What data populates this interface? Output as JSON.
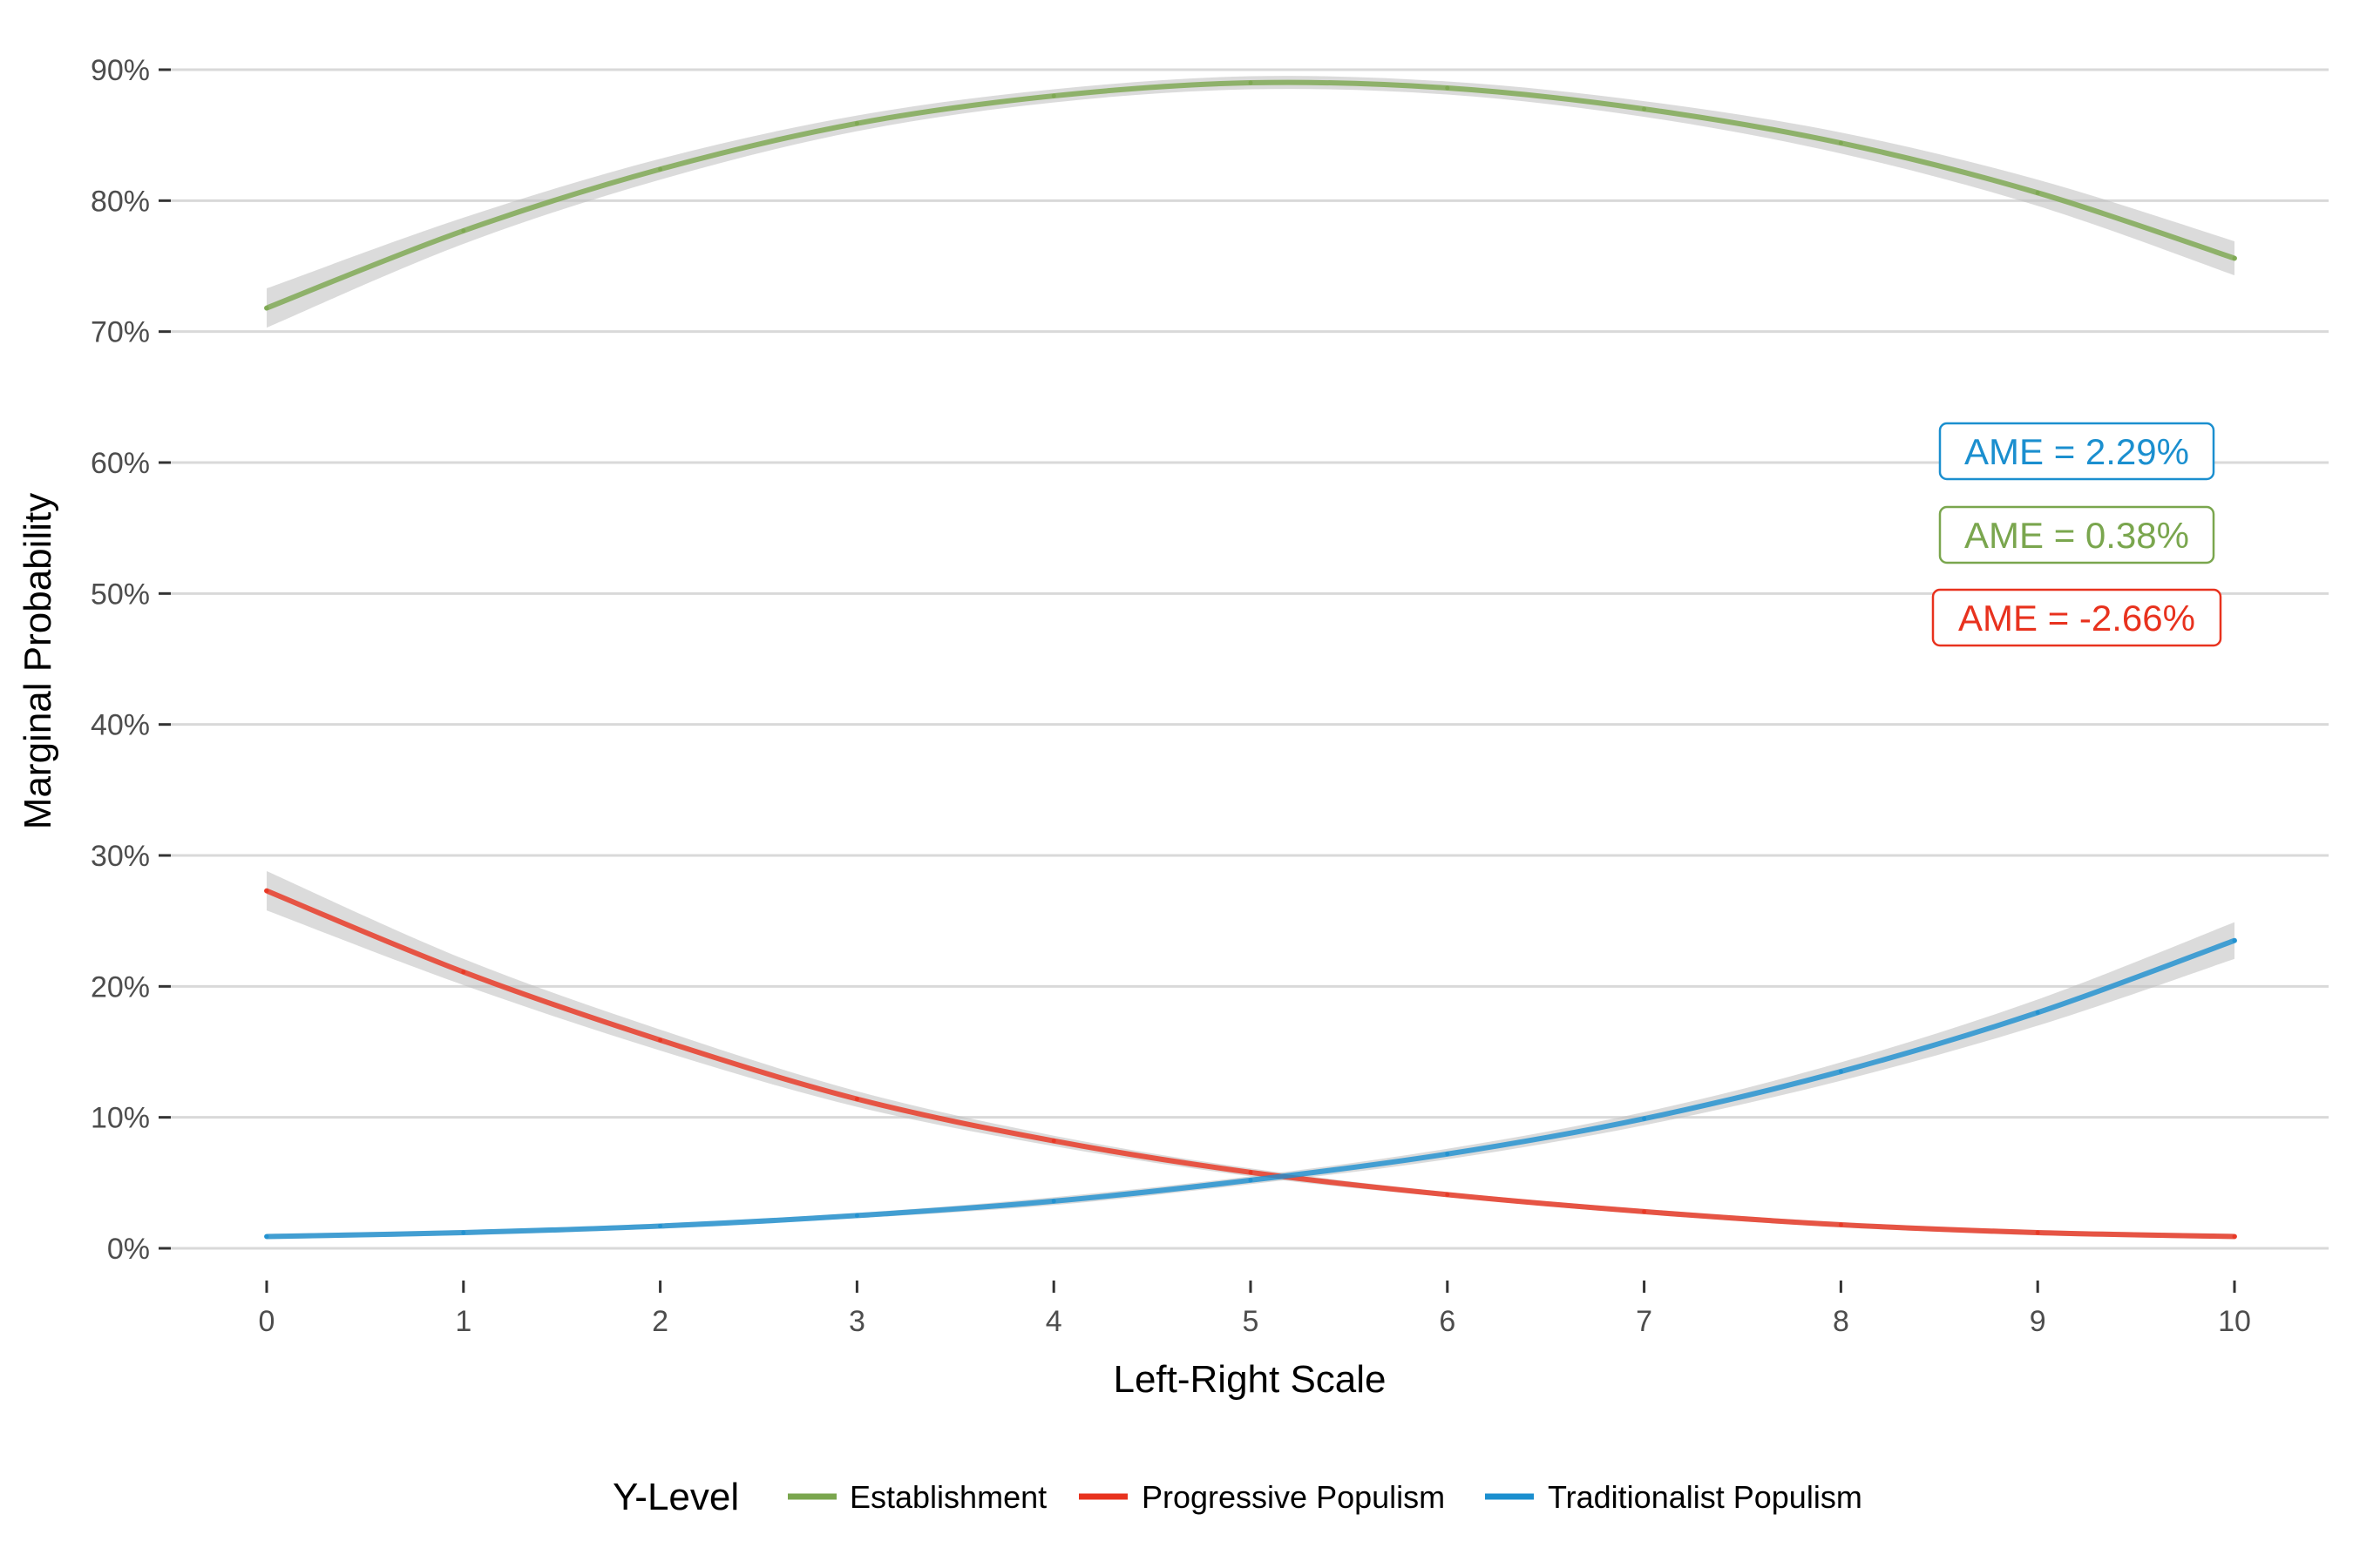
{
  "chart_data": {
    "type": "line",
    "xlabel": "Left-Right Scale",
    "ylabel": "Marginal Probability",
    "xlim": [
      0,
      10
    ],
    "ylim": [
      0,
      90
    ],
    "x_ticks": [
      "0",
      "1",
      "2",
      "3",
      "4",
      "5",
      "6",
      "7",
      "8",
      "9",
      "10"
    ],
    "y_ticks": [
      "0%",
      "10%",
      "20%",
      "30%",
      "40%",
      "50%",
      "60%",
      "70%",
      "80%",
      "90%"
    ],
    "y_tick_values": [
      0,
      10,
      20,
      30,
      40,
      50,
      60,
      70,
      80,
      90
    ],
    "grid": "horizontal",
    "confidence_band": true,
    "legend": {
      "title": "Y-Level",
      "position": "bottom",
      "entries": [
        "Establishment",
        "Progressive Populism",
        "Traditionalist Populism"
      ]
    },
    "x": [
      0,
      1,
      2,
      3,
      4,
      5,
      6,
      7,
      8,
      9,
      10
    ],
    "series": [
      {
        "name": "Establishment",
        "color": "#7aa64e",
        "values": [
          71.8,
          77.7,
          82.4,
          85.9,
          88.0,
          89.0,
          88.6,
          87.0,
          84.4,
          80.6,
          75.6
        ],
        "band": [
          1.5,
          1.0,
          0.8,
          0.6,
          0.5,
          0.5,
          0.5,
          0.6,
          0.8,
          1.0,
          1.3
        ]
      },
      {
        "name": "Progressive Populism",
        "color": "#e8321e",
        "values": [
          27.3,
          21.1,
          15.9,
          11.4,
          8.2,
          5.8,
          4.1,
          2.8,
          1.8,
          1.2,
          0.9
        ],
        "band": [
          1.5,
          1.0,
          0.8,
          0.6,
          0.4,
          0.3,
          0.2,
          0.2,
          0.2,
          0.2,
          0.2
        ]
      },
      {
        "name": "Traditionalist Populism",
        "color": "#1b8fcf",
        "values": [
          0.9,
          1.2,
          1.7,
          2.5,
          3.6,
          5.2,
          7.2,
          9.9,
          13.5,
          18.0,
          23.5
        ],
        "band": [
          0.2,
          0.2,
          0.2,
          0.2,
          0.3,
          0.3,
          0.4,
          0.5,
          0.7,
          1.0,
          1.4
        ]
      }
    ],
    "annotations": [
      {
        "text": "AME = 2.29%",
        "color": "#1b8fcf",
        "series": "Traditionalist Populism"
      },
      {
        "text": "AME = 0.38%",
        "color": "#7aa64e",
        "series": "Establishment"
      },
      {
        "text": "AME = -2.66%",
        "color": "#e8321e",
        "series": "Progressive Populism"
      }
    ]
  }
}
